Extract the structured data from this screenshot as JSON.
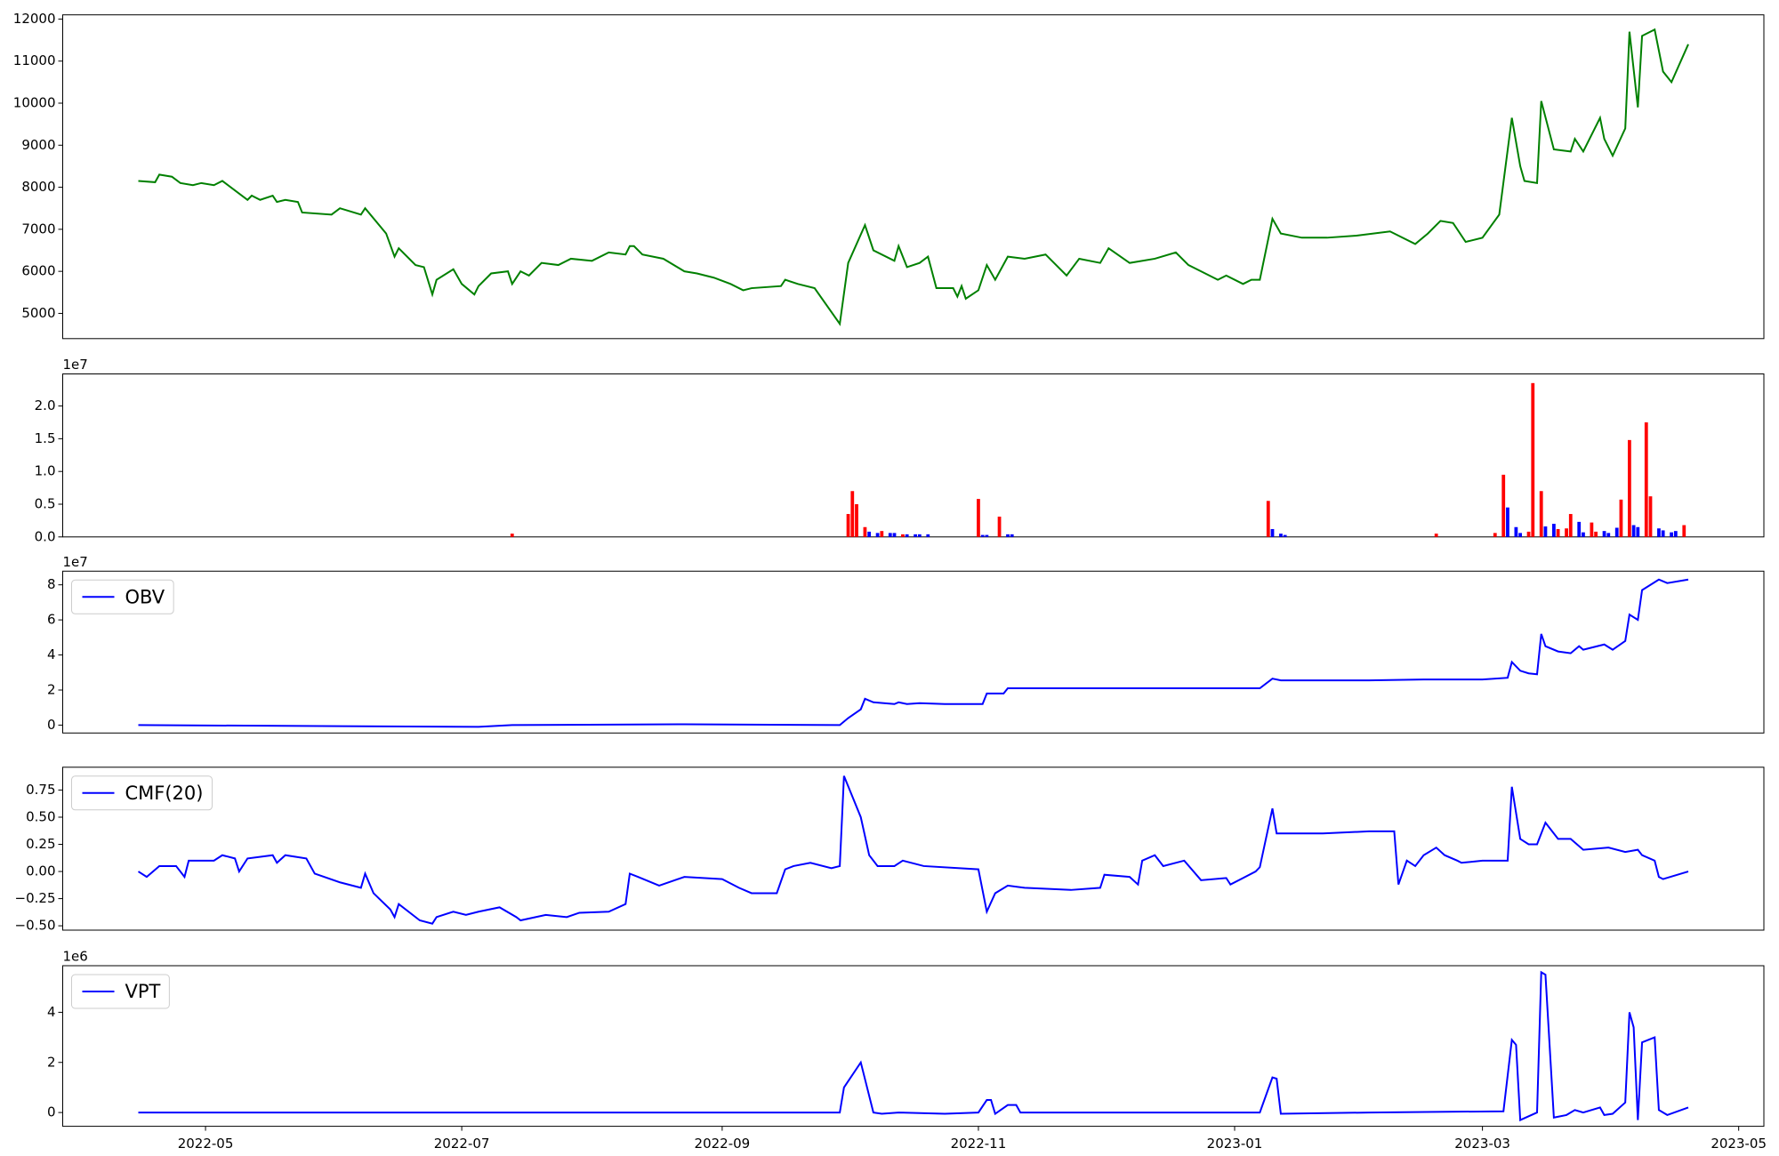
{
  "chart_data": [
    {
      "type": "line",
      "xlim": [
        86,
        491
      ],
      "ylim": [
        4400,
        12100
      ],
      "yticks": [
        5000,
        6000,
        7000,
        8000,
        9000,
        10000,
        11000,
        12000
      ],
      "x": [
        104,
        108,
        109,
        112,
        114,
        117,
        119,
        122,
        124,
        128,
        130,
        131,
        133,
        136,
        137,
        139,
        142,
        143,
        150,
        152,
        157,
        158,
        163,
        165,
        166,
        170,
        172,
        174,
        175,
        179,
        181,
        184,
        185,
        188,
        192,
        193,
        195,
        197,
        200,
        204,
        207,
        212,
        216,
        220,
        221,
        222,
        224,
        229,
        234,
        237,
        241,
        245,
        248,
        250,
        257,
        258,
        261,
        265,
        271,
        273,
        277,
        279,
        284,
        285,
        287,
        290,
        292,
        294,
        298,
        299,
        300,
        301,
        304,
        306,
        308,
        311,
        315,
        320,
        325,
        328,
        333,
        335,
        340,
        346,
        351,
        354,
        356,
        361,
        363,
        367,
        369,
        371,
        374,
        376,
        381,
        387,
        394,
        402,
        408,
        411,
        414,
        417,
        420,
        424,
        428,
        431,
        433,
        434,
        437,
        438,
        441,
        445,
        446,
        448,
        452,
        453,
        455,
        458,
        459,
        461,
        462,
        465,
        467,
        469,
        473
      ],
      "series": [
        {
          "color": "green",
          "values": [
            8150,
            8120,
            8300,
            8250,
            8100,
            8050,
            8100,
            8050,
            8150,
            7850,
            7700,
            7800,
            7700,
            7800,
            7650,
            7700,
            7650,
            7400,
            7350,
            7500,
            7350,
            7500,
            6900,
            6350,
            6550,
            6150,
            6100,
            5450,
            5800,
            6050,
            5700,
            5450,
            5650,
            5950,
            6000,
            5700,
            6000,
            5900,
            6200,
            6150,
            6300,
            6250,
            6450,
            6400,
            6600,
            6600,
            6400,
            6300,
            6000,
            5950,
            5850,
            5700,
            5550,
            5600,
            5650,
            5800,
            5700,
            5600,
            4750,
            6200,
            7100,
            6500,
            6250,
            6600,
            6100,
            6200,
            6350,
            5600,
            5600,
            5400,
            5650,
            5350,
            5550,
            6150,
            5800,
            6350,
            6300,
            6400,
            5900,
            6300,
            6200,
            6550,
            6200,
            6300,
            6450,
            6150,
            6050,
            5800,
            5900,
            5700,
            5800,
            5800,
            7250,
            6900,
            6800,
            6800,
            6850,
            6950,
            6650,
            6900,
            7200,
            7150,
            6700,
            6800,
            7350,
            9650,
            8500,
            8150,
            8100,
            10050,
            8900,
            8850,
            9150,
            8850,
            9650,
            9150,
            8750,
            9400,
            11700,
            9900,
            11600,
            11750,
            10750,
            10500,
            11400
          ]
        }
      ]
    },
    {
      "type": "bar",
      "xlim": [
        86,
        491
      ],
      "ylim": [
        0,
        2.49
      ],
      "offset_label": "1e7",
      "yticks": [
        {
          "value": 0,
          "label": "0.0"
        },
        0.5,
        {
          "value": 1,
          "label": "1.0"
        },
        1.5,
        {
          "value": 2,
          "label": "2.0"
        }
      ],
      "x": [
        193,
        273,
        274,
        275,
        277,
        278,
        280,
        281,
        283,
        284,
        286,
        287,
        289,
        290,
        292,
        304,
        305,
        306,
        309,
        311,
        312,
        373,
        374,
        376,
        377,
        413,
        427,
        429,
        430,
        432,
        433,
        435,
        436,
        438,
        439,
        441,
        442,
        444,
        445,
        447,
        448,
        450,
        451,
        453,
        454,
        456,
        457,
        459,
        460,
        461,
        463,
        464,
        466,
        467,
        469,
        470,
        472
      ],
      "values": [
        0.05,
        0.35,
        0.7,
        0.5,
        0.15,
        0.08,
        0.06,
        0.09,
        0.06,
        0.06,
        0.04,
        0.04,
        0.04,
        0.04,
        0.04,
        0.58,
        0.03,
        0.03,
        0.31,
        0.04,
        0.04,
        0.55,
        0.12,
        0.05,
        0.03,
        0.05,
        0.06,
        0.95,
        0.45,
        0.15,
        0.06,
        0.08,
        2.35,
        0.7,
        0.16,
        0.2,
        0.12,
        0.13,
        0.35,
        0.23,
        0.07,
        0.22,
        0.08,
        0.09,
        0.06,
        0.14,
        0.57,
        1.48,
        0.18,
        0.15,
        1.75,
        0.62,
        0.13,
        0.1,
        0.07,
        0.09,
        0.18
      ],
      "colors": [
        "red",
        "red",
        "red",
        "red",
        "red",
        "blue",
        "blue",
        "red",
        "blue",
        "blue",
        "red",
        "blue",
        "blue",
        "blue",
        "blue",
        "red",
        "blue",
        "blue",
        "red",
        "blue",
        "blue",
        "red",
        "blue",
        "blue",
        "blue",
        "red",
        "red",
        "red",
        "blue",
        "blue",
        "blue",
        "red",
        "red",
        "red",
        "blue",
        "blue",
        "red",
        "red",
        "red",
        "blue",
        "blue",
        "red",
        "red",
        "blue",
        "blue",
        "blue",
        "red",
        "red",
        "blue",
        "blue",
        "red",
        "red",
        "blue",
        "blue",
        "blue",
        "blue",
        "red"
      ]
    },
    {
      "type": "line",
      "xlim": [
        86,
        491
      ],
      "ylim": [
        -0.45,
        8.78
      ],
      "offset_label": "1e7",
      "yticks": [
        0,
        2,
        4,
        6,
        8
      ],
      "legend": "upper left",
      "x": [
        104,
        185,
        193,
        234,
        271,
        273,
        276,
        277,
        279,
        284,
        285,
        287,
        290,
        296,
        305,
        306,
        310,
        311,
        329,
        342,
        371,
        374,
        376,
        397,
        410,
        424,
        430,
        431,
        433,
        435,
        437,
        438,
        439,
        442,
        445,
        447,
        448,
        453,
        455,
        458,
        459,
        461,
        462,
        466,
        468,
        473
      ],
      "series": [
        {
          "name": "OBV",
          "color": "blue",
          "values": [
            0,
            -0.1,
            0,
            0.05,
            0,
            0.4,
            0.9,
            1.5,
            1.3,
            1.2,
            1.3,
            1.2,
            1.25,
            1.2,
            1.2,
            1.8,
            1.8,
            2.1,
            2.1,
            2.1,
            2.1,
            2.65,
            2.55,
            2.55,
            2.6,
            2.6,
            2.7,
            3.6,
            3.1,
            2.95,
            2.9,
            5.2,
            4.5,
            4.2,
            4.1,
            4.5,
            4.3,
            4.6,
            4.3,
            4.8,
            6.3,
            6.0,
            7.7,
            8.3,
            8.1,
            8.3
          ]
        }
      ]
    },
    {
      "type": "line",
      "xlim": [
        86,
        491
      ],
      "ylim": [
        -0.54,
        0.96
      ],
      "legend": "upper left",
      "yticks": [
        {
          "value": -0.5,
          "label": "−0.50"
        },
        {
          "value": -0.25,
          "label": "−0.25"
        },
        {
          "value": 0,
          "label": "0.00"
        },
        0.25,
        {
          "value": 0.5,
          "label": "0.50"
        },
        0.75
      ],
      "x": [
        104,
        106,
        109,
        113,
        115,
        116,
        122,
        124,
        127,
        128,
        130,
        136,
        137,
        139,
        144,
        146,
        152,
        157,
        158,
        160,
        164,
        165,
        166,
        171,
        174,
        175,
        179,
        182,
        185,
        190,
        194,
        195,
        201,
        206,
        209,
        216,
        220,
        221,
        223,
        228,
        234,
        243,
        247,
        250,
        256,
        258,
        260,
        264,
        269,
        271,
        272,
        276,
        278,
        280,
        284,
        286,
        291,
        304,
        306,
        308,
        311,
        315,
        326,
        333,
        334,
        340,
        342,
        343,
        346,
        348,
        353,
        357,
        363,
        364,
        370,
        371,
        374,
        375,
        378,
        386,
        397,
        403,
        404,
        406,
        408,
        410,
        413,
        415,
        418,
        419,
        424,
        430,
        431,
        433,
        435,
        437,
        439,
        442,
        445,
        448,
        454,
        458,
        461,
        462,
        465,
        466,
        467,
        473
      ],
      "series": [
        {
          "name": "CMF(20)",
          "color": "blue",
          "values": [
            0,
            -0.05,
            0.05,
            0.05,
            -0.05,
            0.1,
            0.1,
            0.15,
            0.12,
            0,
            0.12,
            0.15,
            0.08,
            0.15,
            0.12,
            -0.02,
            -0.1,
            -0.15,
            -0.02,
            -0.2,
            -0.35,
            -0.42,
            -0.3,
            -0.45,
            -0.48,
            -0.42,
            -0.37,
            -0.4,
            -0.37,
            -0.33,
            -0.42,
            -0.45,
            -0.4,
            -0.42,
            -0.38,
            -0.37,
            -0.3,
            -0.02,
            -0.05,
            -0.13,
            -0.05,
            -0.07,
            -0.15,
            -0.2,
            -0.2,
            0.02,
            0.05,
            0.08,
            0.03,
            0.05,
            0.88,
            0.5,
            0.15,
            0.05,
            0.05,
            0.1,
            0.05,
            0.02,
            -0.37,
            -0.2,
            -0.13,
            -0.15,
            -0.17,
            -0.15,
            -0.03,
            -0.05,
            -0.12,
            0.1,
            0.15,
            0.05,
            0.1,
            -0.08,
            -0.06,
            -0.12,
            0,
            0.04,
            0.58,
            0.35,
            0.35,
            0.35,
            0.37,
            0.37,
            -0.12,
            0.1,
            0.05,
            0.15,
            0.22,
            0.15,
            0.1,
            0.08,
            0.1,
            0.1,
            0.78,
            0.3,
            0.25,
            0.25,
            0.45,
            0.3,
            0.3,
            0.2,
            0.22,
            0.18,
            0.2,
            0.15,
            0.1,
            -0.05,
            -0.07,
            0
          ]
        }
      ]
    },
    {
      "type": "line",
      "xlim": [
        86,
        491
      ],
      "ylim": [
        -0.55,
        5.86
      ],
      "offset_label": "1e6",
      "yticks": [
        0,
        2,
        4
      ],
      "legend": "upper left",
      "xticks": [
        {
          "value": 120,
          "label": "2022-05"
        },
        {
          "value": 181,
          "label": "2022-07"
        },
        {
          "value": 243,
          "label": "2022-09"
        },
        {
          "value": 304,
          "label": "2022-11"
        },
        {
          "value": 365,
          "label": "2023-01"
        },
        {
          "value": 424,
          "label": "2023-03"
        },
        {
          "value": 485,
          "label": "2023-05"
        }
      ],
      "x": [
        104,
        271,
        272,
        276,
        279,
        281,
        285,
        296,
        304,
        306,
        307,
        308,
        311,
        313,
        314,
        371,
        374,
        375,
        376,
        397,
        429,
        431,
        432,
        433,
        437,
        438,
        439,
        441,
        444,
        446,
        448,
        452,
        453,
        455,
        458,
        459,
        460,
        461,
        462,
        465,
        466,
        468,
        473
      ],
      "series": [
        {
          "name": "VPT",
          "color": "blue",
          "values": [
            0,
            0,
            1.0,
            2.0,
            0,
            -0.05,
            0,
            -0.05,
            0,
            0.5,
            0.5,
            -0.05,
            0.3,
            0.3,
            0,
            0,
            1.4,
            1.35,
            -0.05,
            0,
            0.05,
            2.9,
            2.7,
            -0.3,
            0,
            5.6,
            5.5,
            -0.2,
            -0.1,
            0.1,
            0,
            0.2,
            -0.1,
            -0.05,
            0.4,
            4.0,
            3.4,
            -0.3,
            2.8,
            3.0,
            0.1,
            -0.1,
            0.2
          ]
        }
      ]
    }
  ]
}
